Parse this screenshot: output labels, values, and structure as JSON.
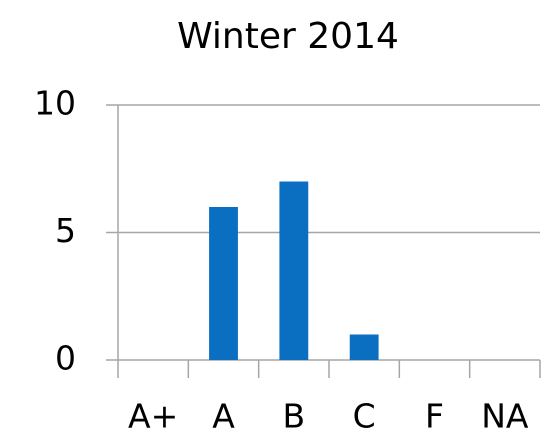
{
  "chart_data": {
    "type": "bar",
    "title": "Winter 2014",
    "categories": [
      "A+",
      "A",
      "B",
      "C",
      "F",
      "NA"
    ],
    "values": [
      0,
      6,
      7,
      1,
      0,
      0
    ],
    "color": "#0b6fc1",
    "ylim": [
      0,
      10
    ],
    "yticks": [
      0,
      5,
      10
    ],
    "grid": true
  }
}
